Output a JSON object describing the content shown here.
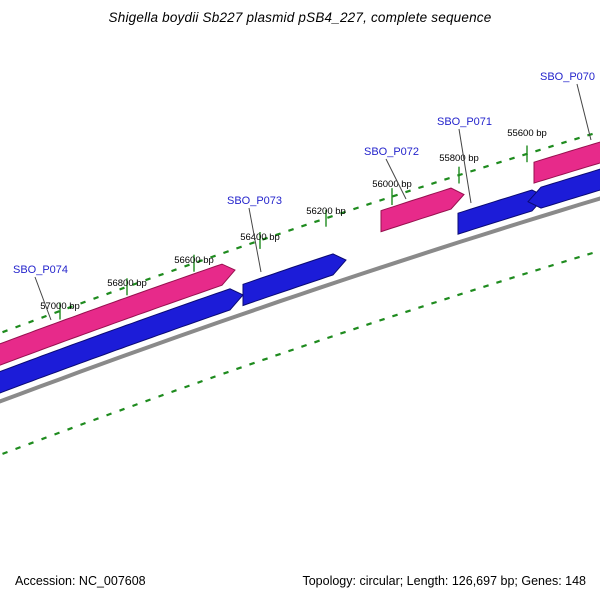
{
  "title": "Shigella boydii Sb227 plasmid pSB4_227, complete sequence",
  "map": {
    "genes": [
      {
        "name": "SBO_P070",
        "track": "pink"
      },
      {
        "name": "SBO_P071",
        "track": "blue"
      },
      {
        "name": "SBO_P072",
        "track": "pink"
      },
      {
        "name": "SBO_P073",
        "track": "blue"
      },
      {
        "name": "SBO_P074",
        "track": "pink"
      }
    ],
    "ruler_labels": [
      "55600 bp",
      "55800 bp",
      "56000 bp",
      "56200 bp",
      "56400 bp",
      "56600 bp",
      "56800 bp",
      "57000 bp"
    ],
    "colors": {
      "forward_gene": "#e72a8a",
      "forward_gene_edge": "#97104f",
      "reverse_gene": "#1c1cd8",
      "reverse_gene_edge": "#0a0a73",
      "backbone": "#8a8a8a",
      "ticks": "#1e8b1e",
      "gene_label": "#2424cc"
    }
  },
  "status": {
    "accession": "Accession: NC_007608",
    "topology": "Topology: circular; Length: 126,697 bp; Genes: 148"
  }
}
